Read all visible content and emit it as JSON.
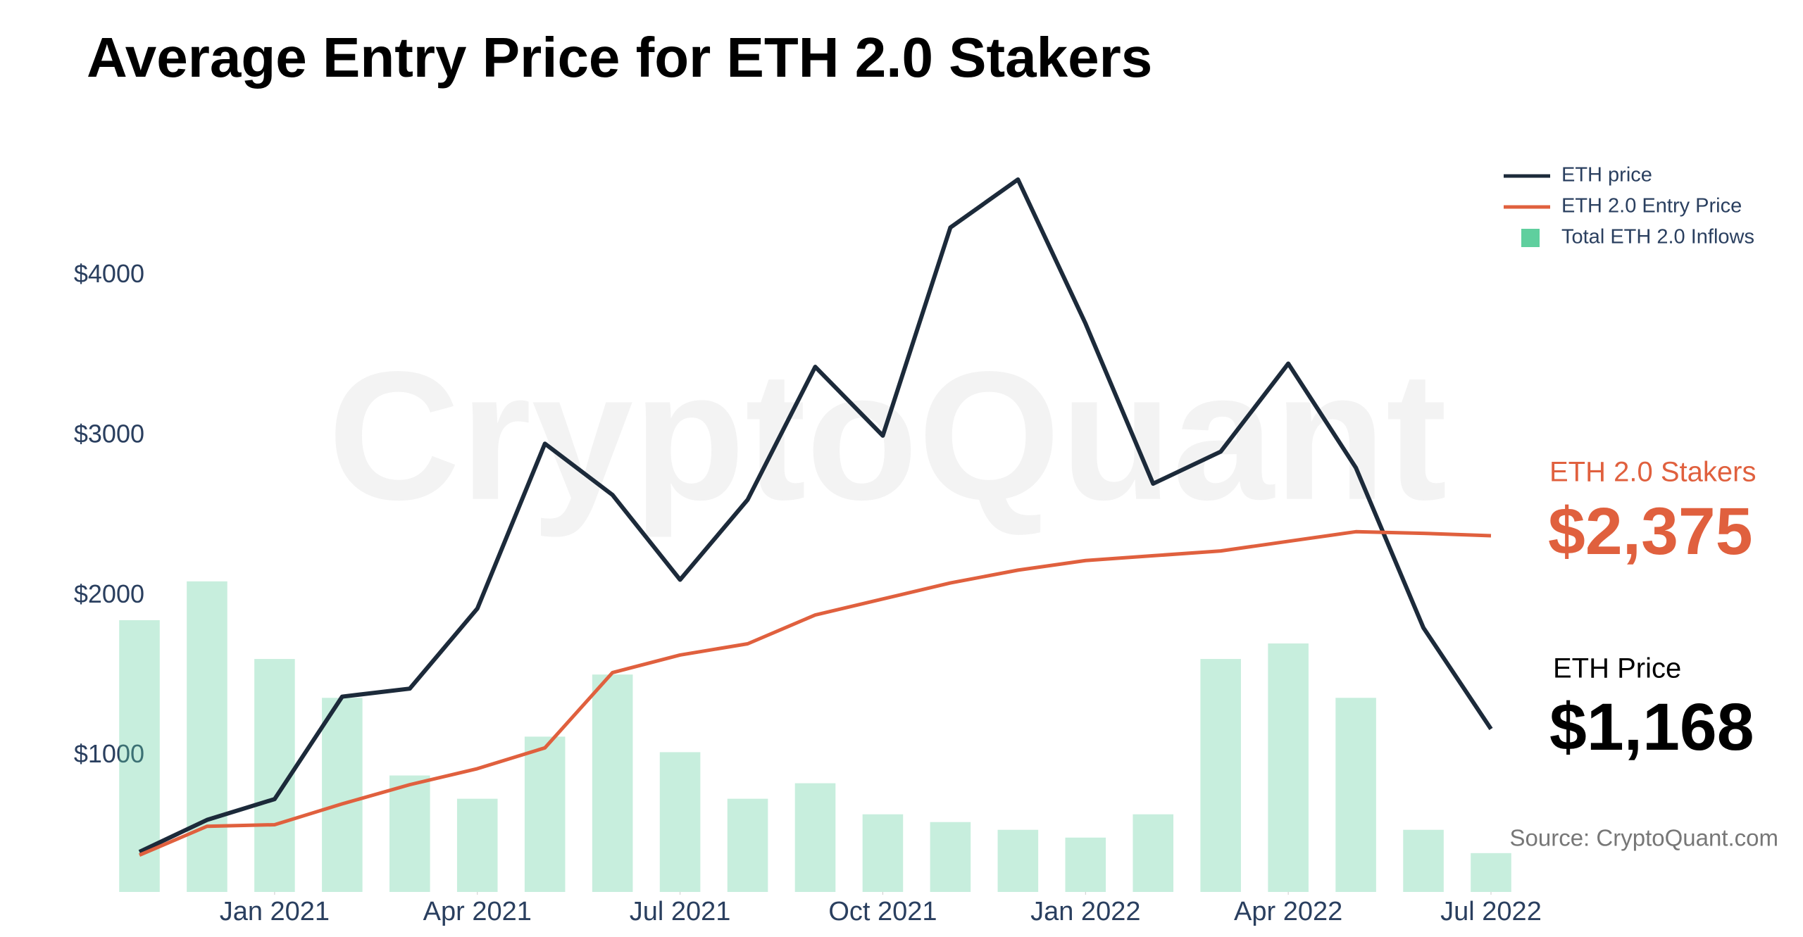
{
  "chart_data": {
    "type": "line",
    "title": "Average Entry Price for ETH 2.0 Stakers",
    "watermark": "CryptoQuant",
    "source": "Source: CryptoQuant.com",
    "annotations": [
      {
        "label": "ETH 2.0 Stakers",
        "value_text": "$2,375",
        "color": "#e0603e"
      },
      {
        "label": "ETH Price",
        "value_text": "$1,168",
        "color": "#000000"
      }
    ],
    "x": [
      "2020-11",
      "2020-12",
      "2021-01",
      "2021-02",
      "2021-03",
      "2021-04",
      "2021-05",
      "2021-06",
      "2021-07",
      "2021-08",
      "2021-09",
      "2021-10",
      "2021-11",
      "2021-12",
      "2022-01",
      "2022-02",
      "2022-03",
      "2022-04",
      "2022-05",
      "2022-06",
      "2022-07"
    ],
    "xlim": [
      "2020-11",
      "2022-07"
    ],
    "xticks": [
      {
        "value": "2021-01",
        "label": "Jan 2021"
      },
      {
        "value": "2021-04",
        "label": "Apr 2021"
      },
      {
        "value": "2021-07",
        "label": "Jul 2021"
      },
      {
        "value": "2021-10",
        "label": "Oct 2021"
      },
      {
        "value": "2022-01",
        "label": "Jan 2022"
      },
      {
        "value": "2022-04",
        "label": "Apr 2022"
      },
      {
        "value": "2022-07",
        "label": "Jul 2022"
      }
    ],
    "ylim": [
      150,
      5000
    ],
    "yticks": [
      {
        "value": 1000,
        "label": "$1000"
      },
      {
        "value": 2000,
        "label": "$2000"
      },
      {
        "value": 3000,
        "label": "$3000"
      },
      {
        "value": 4000,
        "label": "$4000"
      }
    ],
    "y2lim": [
      0,
      100
    ],
    "legend": "top-right",
    "series": [
      {
        "name": "ETH price",
        "color": "#1c2a3a",
        "values": [
          400,
          600,
          730,
          1370,
          1420,
          1920,
          2950,
          2630,
          2100,
          2600,
          3430,
          3000,
          4300,
          4600,
          3700,
          2700,
          2900,
          3450,
          2800,
          1800,
          1168
        ]
      },
      {
        "name": "ETH 2.0 Entry Price",
        "color": "#e0603e",
        "values": [
          380,
          560,
          570,
          700,
          820,
          920,
          1050,
          1520,
          1630,
          1700,
          1880,
          1980,
          2080,
          2160,
          2220,
          2250,
          2280,
          2340,
          2400,
          2390,
          2375
        ]
      },
      {
        "name": "Total ETH 2.0 Inflows",
        "color": "#5fcf9e",
        "type": "bar",
        "axis": "y2",
        "values": [
          35,
          40,
          30,
          25,
          15,
          12,
          20,
          28,
          18,
          12,
          14,
          10,
          9,
          8,
          7,
          10,
          30,
          32,
          25,
          8,
          5
        ]
      }
    ]
  }
}
